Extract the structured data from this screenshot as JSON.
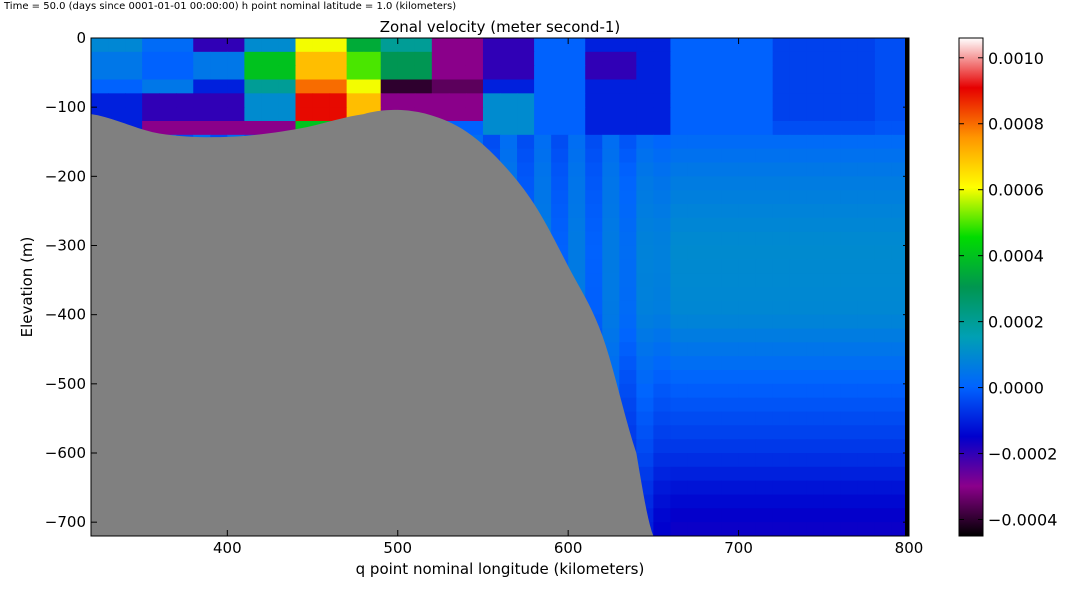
{
  "header_note": "Time = 50.0 (days since 0001-01-01 00:00:00)   h point nominal latitude = 1.0 (kilometers)",
  "chart_data": {
    "type": "heatmap",
    "title": "Zonal velocity (meter  second-1)",
    "xlabel": "q point nominal longitude (kilometers)",
    "ylabel": "Elevation (m)",
    "xlim": [
      320,
      800
    ],
    "ylim": [
      -720,
      0
    ],
    "x_ticks": [
      400,
      500,
      600,
      700,
      800
    ],
    "y_ticks": [
      0,
      -100,
      -200,
      -300,
      -400,
      -500,
      -600,
      -700
    ],
    "colorbar": {
      "range": [
        -0.00045,
        0.00106
      ],
      "ticks": [
        0.001,
        0.0008,
        0.0006,
        0.0004,
        0.0002,
        0.0,
        -0.0002,
        -0.0004
      ],
      "tick_labels": [
        "0.0010",
        "0.0008",
        "0.0006",
        "0.0004",
        "0.0002",
        "0.0000",
        "−0.0002",
        "−0.0004"
      ],
      "colormap": [
        "#000000",
        "#8b008b",
        "#0000cd",
        "#0064ff",
        "#00a0b4",
        "#009650",
        "#00dc00",
        "#ffff00",
        "#ff9600",
        "#e60000",
        "#ffffff"
      ]
    },
    "land_mask_color": "#808080",
    "bathymetry": {
      "x": [
        320,
        360,
        400,
        440,
        480,
        500,
        520,
        540,
        560,
        580,
        600,
        620,
        640,
        650
      ],
      "depth": [
        -110,
        -138,
        -143,
        -132,
        -110,
        -104,
        -112,
        -135,
        -178,
        -240,
        -330,
        -430,
        -600,
        -720
      ]
    },
    "velocity_rows": [
      {
        "depth": -10,
        "values": [
          9e-05,
          2e-05,
          -0.0002,
          0.0001,
          0.0006,
          0.00035,
          0.0002,
          -0.0003,
          -0.0002,
          0.0,
          -0.0001,
          -0.0001,
          0.0,
          0.0,
          -5e-05,
          -5e-05,
          -3e-05
        ]
      },
      {
        "depth": -35,
        "values": [
          5e-05,
          0.0,
          5e-05,
          0.0004,
          0.0007,
          0.0005,
          0.0003,
          -0.0003,
          -0.0002,
          0.0,
          -0.0002,
          -0.0001,
          0.0,
          0.0,
          -5e-05,
          -5e-05,
          -3e-05
        ]
      },
      {
        "depth": -65,
        "values": [
          0.0,
          5e-05,
          -0.0001,
          0.0002,
          0.0008,
          0.0006,
          -0.0004,
          -0.00035,
          -0.0001,
          0.0,
          -0.0001,
          -0.0001,
          0.0,
          0.0,
          -5e-05,
          -5e-05,
          -3e-05
        ]
      },
      {
        "depth": -95,
        "values": [
          -0.0001,
          -0.0002,
          -0.0002,
          0.0001,
          0.0009,
          0.0007,
          -0.0003,
          -0.0003,
          0.0001,
          0.0,
          -0.0001,
          -0.0001,
          0.0,
          0.0,
          -5e-05,
          -5e-05,
          -3e-05
        ]
      },
      {
        "depth": -125,
        "values": [
          -0.0001,
          -0.0003,
          -0.0003,
          -0.0003,
          0.0004,
          0.0,
          -0.0001,
          0.0,
          0.0001,
          0.0,
          -0.0001,
          -0.0001,
          0.0,
          0.0,
          -3e-05,
          -3e-05,
          -2e-05
        ]
      }
    ],
    "deep_profile": [
      {
        "depth": -150,
        "value": 2e-05
      },
      {
        "depth": -200,
        "value": 6e-05
      },
      {
        "depth": -300,
        "value": 0.0001
      },
      {
        "depth": -400,
        "value": 9e-05
      },
      {
        "depth": -500,
        "value": 0.0
      },
      {
        "depth": -600,
        "value": -7e-05
      },
      {
        "depth": -650,
        "value": -0.00012
      },
      {
        "depth": -700,
        "value": -0.00016
      }
    ]
  }
}
